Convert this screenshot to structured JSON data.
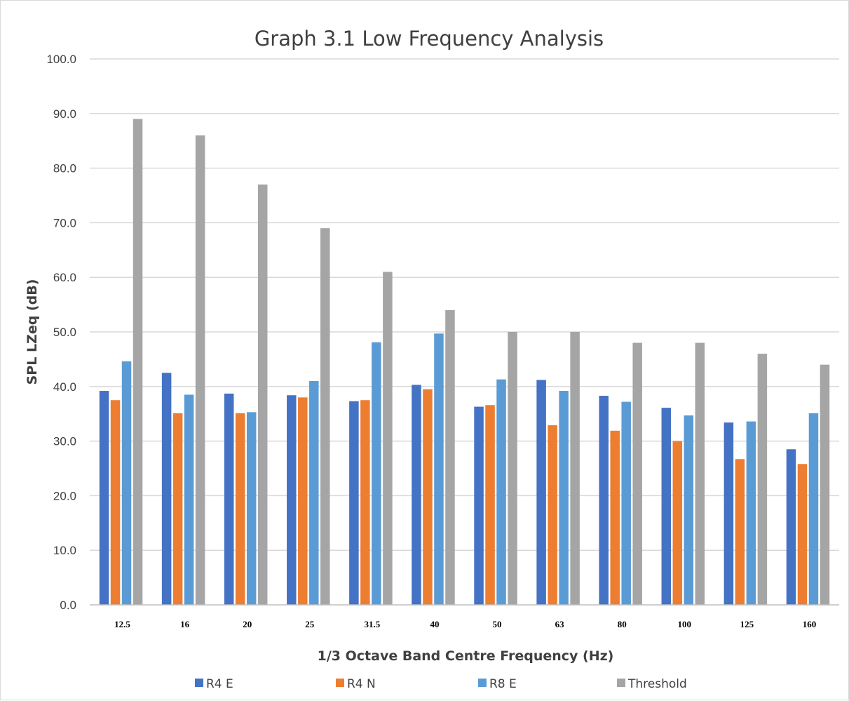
{
  "chart_data": {
    "type": "bar",
    "title": "Graph 3.1 Low Frequency Analysis",
    "xlabel": "1/3 Octave Band Centre Frequency (Hz)",
    "ylabel": "SPL LZeq (dB)",
    "ylim": [
      0,
      100
    ],
    "yticks": [
      "0.0",
      "10.0",
      "20.0",
      "30.0",
      "40.0",
      "50.0",
      "60.0",
      "70.0",
      "80.0",
      "90.0",
      "100.0"
    ],
    "grid": true,
    "legend_position": "bottom",
    "categories": [
      "12.5",
      "16",
      "20",
      "25",
      "31.5",
      "40",
      "50",
      "63",
      "80",
      "100",
      "125",
      "160"
    ],
    "series": [
      {
        "name": "R4 E",
        "color": "#4472c4",
        "values": [
          39.2,
          42.5,
          38.7,
          38.4,
          37.3,
          40.3,
          36.3,
          41.2,
          38.3,
          36.1,
          33.4,
          28.5
        ]
      },
      {
        "name": "R4 N",
        "color": "#ed7d31",
        "values": [
          37.5,
          35.1,
          35.1,
          38.0,
          37.5,
          39.5,
          36.6,
          32.9,
          31.9,
          30.0,
          26.7,
          25.8
        ]
      },
      {
        "name": "R8 E",
        "color": "#5b9bd5",
        "values": [
          44.6,
          38.5,
          35.3,
          41.0,
          48.1,
          49.7,
          41.3,
          39.2,
          37.2,
          34.7,
          33.6,
          35.1
        ]
      },
      {
        "name": "Threshold",
        "color": "#a5a5a5",
        "values": [
          89,
          86,
          77,
          69,
          61,
          54,
          50,
          50,
          48,
          48,
          46,
          44
        ]
      }
    ]
  }
}
